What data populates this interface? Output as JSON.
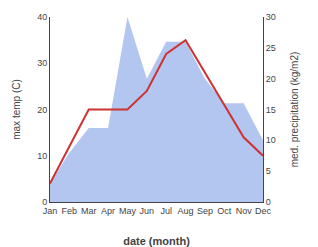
{
  "chart_data": {
    "type": "line",
    "xlabel": "date (month)",
    "ylabel": "max temp (C)",
    "y2label": "med. precipitation (kg/m2)",
    "categories": [
      "Jan",
      "Feb",
      "Mar",
      "Apr",
      "May",
      "Jun",
      "Jul",
      "Aug",
      "Sep",
      "Oct",
      "Nov",
      "Dec"
    ],
    "series": [
      {
        "type": "area",
        "axis": "y2",
        "color": "#b3c6f0",
        "values": [
          3,
          8,
          12,
          12,
          30,
          20,
          26,
          26,
          20,
          16,
          16,
          10
        ]
      },
      {
        "type": "line",
        "color": "#cc3333",
        "values": [
          4,
          12,
          20,
          20,
          20,
          24,
          32,
          35,
          28,
          21,
          14,
          10
        ]
      }
    ],
    "ylim": [
      0,
      40
    ],
    "yticks": [
      0,
      10,
      20,
      30,
      40
    ],
    "y2lim": [
      0,
      30
    ],
    "y2ticks": [
      0,
      5,
      10,
      15,
      20,
      25,
      30
    ],
    "grid": false
  }
}
